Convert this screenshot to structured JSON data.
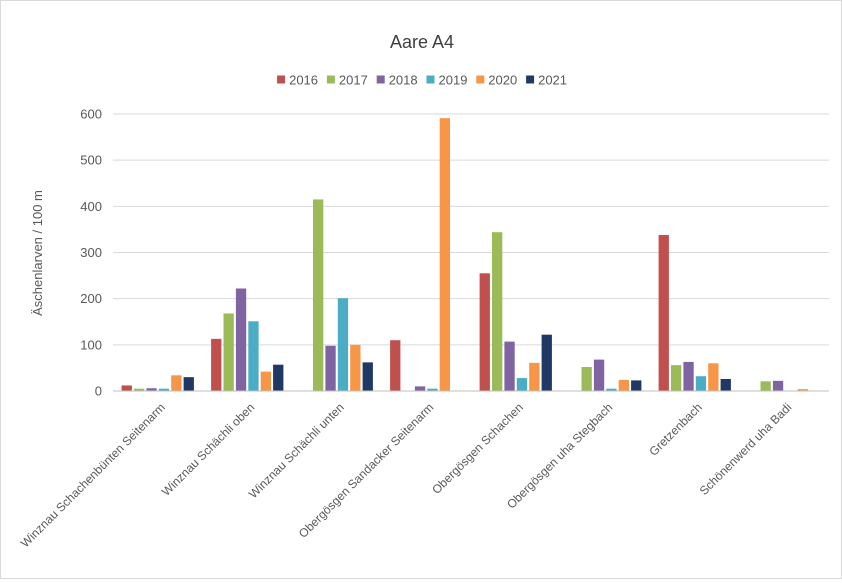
{
  "chart_data": {
    "type": "bar",
    "title": "Aare A4",
    "xlabel": "",
    "ylabel": "Äschenlarven / 100 m",
    "ylim": [
      0,
      600
    ],
    "yticks": [
      0,
      100,
      200,
      300,
      400,
      500,
      600
    ],
    "grid": true,
    "legend_position": "top",
    "categories": [
      "Winznau Schachenbünten Seitenarm",
      "Winznau Schächli oben",
      "Winznau Schächli unten",
      "Obergösgen Sandacker Seitenarm",
      "Obergösgen Schachen",
      "Obergösgen uha Stegbach",
      "Gretzenbach",
      "Schönenwerd uha Badi"
    ],
    "series": [
      {
        "name": "2016",
        "color": "#c0504d",
        "values": [
          12,
          113,
          0,
          110,
          255,
          0,
          338,
          0
        ]
      },
      {
        "name": "2017",
        "color": "#9bbb59",
        "values": [
          5,
          168,
          415,
          0,
          344,
          52,
          56,
          21
        ]
      },
      {
        "name": "2018",
        "color": "#8064a2",
        "values": [
          6,
          222,
          98,
          10,
          107,
          68,
          63,
          22
        ]
      },
      {
        "name": "2019",
        "color": "#4bacc6",
        "values": [
          5,
          151,
          201,
          5,
          28,
          5,
          32,
          0
        ]
      },
      {
        "name": "2020",
        "color": "#f79646",
        "values": [
          34,
          42,
          100,
          591,
          61,
          24,
          60,
          4
        ]
      },
      {
        "name": "2021",
        "color": "#1f3864",
        "values": [
          30,
          57,
          62,
          0,
          122,
          23,
          26,
          0
        ]
      }
    ]
  }
}
